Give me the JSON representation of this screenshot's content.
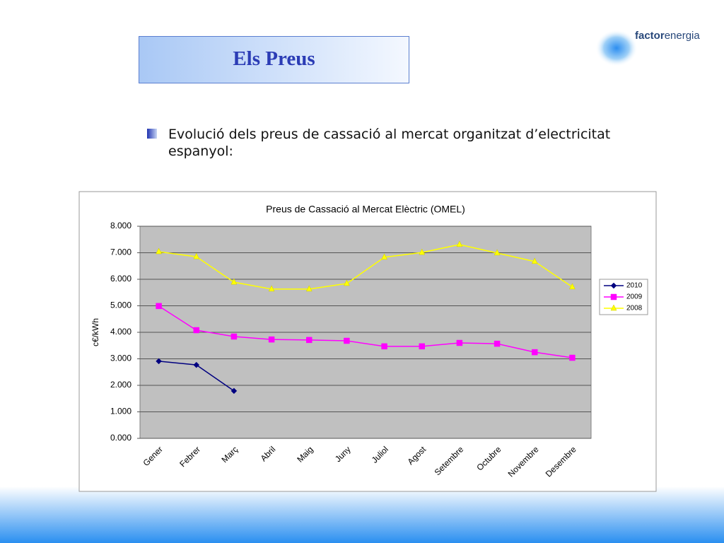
{
  "header": {
    "title": "Els Preus",
    "logo": [
      "factor",
      "energia"
    ]
  },
  "body": {
    "bullet": "Evolució dels preus de cassació al mercat organitzat d’electricitat espanyol:"
  },
  "chart_data": {
    "type": "line",
    "title": "Preus de Cassació al Mercat Elèctric (OMEL)",
    "y_label": "c€/kWh",
    "categories": [
      "Gener",
      "Febrer",
      "Març",
      "Abril",
      "Maig",
      "Juny",
      "Juliol",
      "Agost",
      "Setembre",
      "Octubre",
      "Novembre",
      "Desembre"
    ],
    "series": [
      {
        "name": "2010",
        "color": "#000080",
        "marker": "diamond",
        "values": [
          2.91,
          2.77,
          1.79,
          null,
          null,
          null,
          null,
          null,
          null,
          null,
          null,
          null
        ]
      },
      {
        "name": "2009",
        "color": "#ff00ff",
        "marker": "square",
        "values": [
          4.99,
          4.08,
          3.84,
          3.73,
          3.71,
          3.68,
          3.47,
          3.47,
          3.6,
          3.57,
          3.25,
          3.04
        ]
      },
      {
        "name": "2008",
        "color": "#ffff00",
        "marker": "triangle",
        "values": [
          7.04,
          6.85,
          5.89,
          5.63,
          5.63,
          5.84,
          6.83,
          7.01,
          7.31,
          6.99,
          6.67,
          5.71
        ]
      }
    ],
    "ylim": [
      0,
      8
    ],
    "yticks": [
      {
        "value": 0,
        "label": "0.000"
      },
      {
        "value": 1,
        "label": "1.000"
      },
      {
        "value": 2,
        "label": "2.000"
      },
      {
        "value": 3,
        "label": "3.000"
      },
      {
        "value": 4,
        "label": "4.000"
      },
      {
        "value": 5,
        "label": "5.000"
      },
      {
        "value": 6,
        "label": "6.000"
      },
      {
        "value": 7,
        "label": "7.000"
      },
      {
        "value": 8,
        "label": "8.000"
      }
    ],
    "grid": true,
    "plot_background": "#c0c0c0",
    "legend": "right"
  }
}
